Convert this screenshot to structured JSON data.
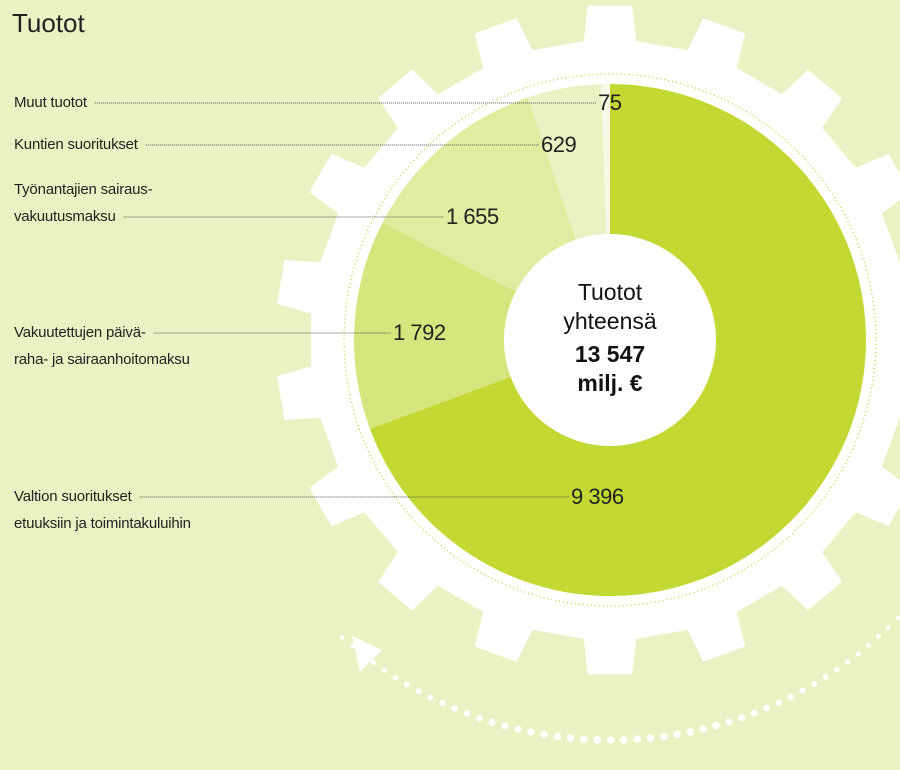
{
  "chart_data": {
    "type": "pie",
    "title": "Tuotot",
    "categories": [
      "Valtion suoritukset\netuuksiin ja toimintakuluihin",
      "Vakuutettujen päivä-\nraha- ja sairaanhoitomaksu",
      "Työnantajien sairaus-\nvakuutusmaksu",
      "Kuntien suoritukset",
      "Muut tuotot"
    ],
    "values": [
      9396,
      1792,
      1655,
      629,
      75
    ],
    "value_labels": [
      "9 396",
      "1 792",
      "1 655",
      "629",
      "75"
    ],
    "colors": [
      "#c2d933",
      "#d6e67e",
      "#e0eca0",
      "#e9f2c2",
      "#f6f9e6"
    ],
    "center_label": "Tuotot\nyhteensä",
    "center_value": "13 547\nmilj. €"
  }
}
